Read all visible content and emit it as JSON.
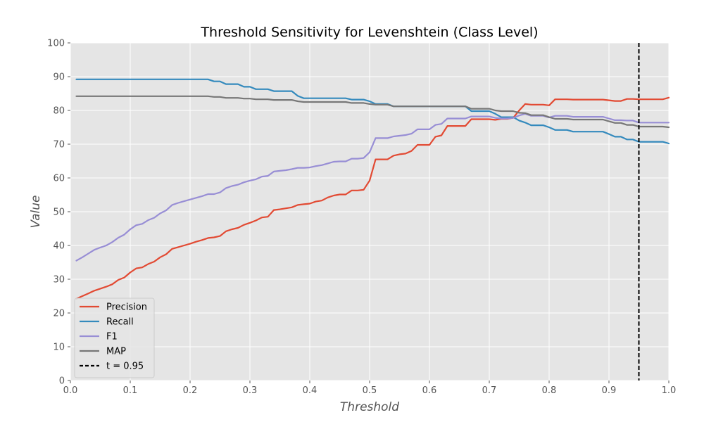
{
  "chart_data": {
    "type": "line",
    "title": "Threshold Sensitivity for Levenshtein (Class Level)",
    "xlabel": "Threshold",
    "ylabel": "Value",
    "xlim": [
      0,
      1
    ],
    "ylim": [
      0,
      100
    ],
    "xticks": [
      "0.0",
      "0.1",
      "0.2",
      "0.3",
      "0.4",
      "0.5",
      "0.6",
      "0.7",
      "0.8",
      "0.9",
      "1.0"
    ],
    "yticks": [
      "0",
      "10",
      "20",
      "30",
      "40",
      "50",
      "60",
      "70",
      "80",
      "90",
      "100"
    ],
    "grid": true,
    "legend_position": "lower-left",
    "series": [
      {
        "name": "Precision",
        "color": "#E24A33",
        "points": [
          [
            0.01,
            24.2
          ],
          [
            0.02,
            25.0
          ],
          [
            0.03,
            25.8
          ],
          [
            0.04,
            26.6
          ],
          [
            0.05,
            27.2
          ],
          [
            0.06,
            27.8
          ],
          [
            0.07,
            28.5
          ],
          [
            0.08,
            29.8
          ],
          [
            0.09,
            30.5
          ],
          [
            0.1,
            32.0
          ],
          [
            0.11,
            33.2
          ],
          [
            0.12,
            33.5
          ],
          [
            0.13,
            34.5
          ],
          [
            0.14,
            35.2
          ],
          [
            0.15,
            36.5
          ],
          [
            0.16,
            37.4
          ],
          [
            0.17,
            39.0
          ],
          [
            0.18,
            39.5
          ],
          [
            0.19,
            40.0
          ],
          [
            0.2,
            40.5
          ],
          [
            0.21,
            41.1
          ],
          [
            0.22,
            41.6
          ],
          [
            0.23,
            42.2
          ],
          [
            0.24,
            42.4
          ],
          [
            0.25,
            42.8
          ],
          [
            0.26,
            44.2
          ],
          [
            0.27,
            44.8
          ],
          [
            0.28,
            45.2
          ],
          [
            0.29,
            46.1
          ],
          [
            0.3,
            46.7
          ],
          [
            0.31,
            47.4
          ],
          [
            0.32,
            48.3
          ],
          [
            0.33,
            48.5
          ],
          [
            0.34,
            50.5
          ],
          [
            0.35,
            50.7
          ],
          [
            0.36,
            51.0
          ],
          [
            0.37,
            51.3
          ],
          [
            0.38,
            52.0
          ],
          [
            0.39,
            52.2
          ],
          [
            0.4,
            52.4
          ],
          [
            0.41,
            53.0
          ],
          [
            0.42,
            53.3
          ],
          [
            0.43,
            54.2
          ],
          [
            0.44,
            54.8
          ],
          [
            0.45,
            55.1
          ],
          [
            0.46,
            55.1
          ],
          [
            0.47,
            56.3
          ],
          [
            0.48,
            56.3
          ],
          [
            0.49,
            56.5
          ],
          [
            0.5,
            59.2
          ],
          [
            0.51,
            65.5
          ],
          [
            0.52,
            65.5
          ],
          [
            0.53,
            65.5
          ],
          [
            0.54,
            66.6
          ],
          [
            0.55,
            67.0
          ],
          [
            0.56,
            67.2
          ],
          [
            0.57,
            68.0
          ],
          [
            0.58,
            69.8
          ],
          [
            0.59,
            69.8
          ],
          [
            0.6,
            69.8
          ],
          [
            0.61,
            72.2
          ],
          [
            0.62,
            72.6
          ],
          [
            0.63,
            75.4
          ],
          [
            0.64,
            75.4
          ],
          [
            0.65,
            75.4
          ],
          [
            0.66,
            75.4
          ],
          [
            0.67,
            77.4
          ],
          [
            0.68,
            77.4
          ],
          [
            0.69,
            77.4
          ],
          [
            0.7,
            77.4
          ],
          [
            0.71,
            77.2
          ],
          [
            0.72,
            77.5
          ],
          [
            0.73,
            77.5
          ],
          [
            0.74,
            77.8
          ],
          [
            0.75,
            80.0
          ],
          [
            0.76,
            81.9
          ],
          [
            0.77,
            81.7
          ],
          [
            0.78,
            81.7
          ],
          [
            0.79,
            81.7
          ],
          [
            0.8,
            81.5
          ],
          [
            0.81,
            83.3
          ],
          [
            0.82,
            83.3
          ],
          [
            0.83,
            83.3
          ],
          [
            0.84,
            83.2
          ],
          [
            0.85,
            83.2
          ],
          [
            0.86,
            83.2
          ],
          [
            0.87,
            83.2
          ],
          [
            0.88,
            83.2
          ],
          [
            0.89,
            83.2
          ],
          [
            0.9,
            83.0
          ],
          [
            0.91,
            82.8
          ],
          [
            0.92,
            82.8
          ],
          [
            0.93,
            83.4
          ],
          [
            0.94,
            83.4
          ],
          [
            0.95,
            83.3
          ],
          [
            0.96,
            83.3
          ],
          [
            0.97,
            83.3
          ],
          [
            0.98,
            83.3
          ],
          [
            0.99,
            83.3
          ],
          [
            1.0,
            83.8
          ]
        ]
      },
      {
        "name": "Recall",
        "color": "#348ABD",
        "points": [
          [
            0.01,
            89.2
          ],
          [
            0.1,
            89.2
          ],
          [
            0.2,
            89.2
          ],
          [
            0.23,
            89.2
          ],
          [
            0.24,
            88.6
          ],
          [
            0.25,
            88.6
          ],
          [
            0.26,
            87.8
          ],
          [
            0.28,
            87.8
          ],
          [
            0.29,
            87.0
          ],
          [
            0.3,
            87.0
          ],
          [
            0.31,
            86.3
          ],
          [
            0.33,
            86.3
          ],
          [
            0.34,
            85.7
          ],
          [
            0.37,
            85.7
          ],
          [
            0.38,
            84.3
          ],
          [
            0.39,
            83.6
          ],
          [
            0.46,
            83.6
          ],
          [
            0.47,
            83.2
          ],
          [
            0.49,
            83.2
          ],
          [
            0.5,
            82.7
          ],
          [
            0.51,
            81.9
          ],
          [
            0.53,
            81.9
          ],
          [
            0.54,
            81.2
          ],
          [
            0.66,
            81.2
          ],
          [
            0.67,
            79.8
          ],
          [
            0.7,
            79.8
          ],
          [
            0.71,
            79.0
          ],
          [
            0.72,
            78.0
          ],
          [
            0.74,
            78.0
          ],
          [
            0.75,
            77.0
          ],
          [
            0.76,
            76.4
          ],
          [
            0.77,
            75.6
          ],
          [
            0.79,
            75.6
          ],
          [
            0.8,
            75.0
          ],
          [
            0.81,
            74.2
          ],
          [
            0.83,
            74.2
          ],
          [
            0.84,
            73.7
          ],
          [
            0.89,
            73.7
          ],
          [
            0.9,
            73.0
          ],
          [
            0.91,
            72.2
          ],
          [
            0.92,
            72.2
          ],
          [
            0.93,
            71.4
          ],
          [
            0.94,
            71.4
          ],
          [
            0.95,
            70.7
          ],
          [
            0.99,
            70.7
          ],
          [
            1.0,
            70.2
          ]
        ]
      },
      {
        "name": "F1",
        "color": "#988ED5",
        "points": [
          [
            0.01,
            35.5
          ],
          [
            0.02,
            36.5
          ],
          [
            0.03,
            37.6
          ],
          [
            0.04,
            38.7
          ],
          [
            0.05,
            39.4
          ],
          [
            0.06,
            40.0
          ],
          [
            0.07,
            41.0
          ],
          [
            0.08,
            42.3
          ],
          [
            0.09,
            43.2
          ],
          [
            0.1,
            44.8
          ],
          [
            0.11,
            46.0
          ],
          [
            0.12,
            46.4
          ],
          [
            0.13,
            47.5
          ],
          [
            0.14,
            48.2
          ],
          [
            0.15,
            49.5
          ],
          [
            0.16,
            50.4
          ],
          [
            0.17,
            52.0
          ],
          [
            0.18,
            52.6
          ],
          [
            0.19,
            53.1
          ],
          [
            0.2,
            53.6
          ],
          [
            0.21,
            54.1
          ],
          [
            0.22,
            54.6
          ],
          [
            0.23,
            55.2
          ],
          [
            0.24,
            55.2
          ],
          [
            0.25,
            55.7
          ],
          [
            0.26,
            57.0
          ],
          [
            0.27,
            57.6
          ],
          [
            0.28,
            58.0
          ],
          [
            0.29,
            58.7
          ],
          [
            0.3,
            59.2
          ],
          [
            0.31,
            59.6
          ],
          [
            0.32,
            60.4
          ],
          [
            0.33,
            60.6
          ],
          [
            0.34,
            61.9
          ],
          [
            0.35,
            62.1
          ],
          [
            0.36,
            62.3
          ],
          [
            0.37,
            62.6
          ],
          [
            0.38,
            63.0
          ],
          [
            0.39,
            63.0
          ],
          [
            0.4,
            63.1
          ],
          [
            0.41,
            63.5
          ],
          [
            0.42,
            63.8
          ],
          [
            0.43,
            64.3
          ],
          [
            0.44,
            64.8
          ],
          [
            0.45,
            64.9
          ],
          [
            0.46,
            64.9
          ],
          [
            0.47,
            65.7
          ],
          [
            0.48,
            65.7
          ],
          [
            0.49,
            65.9
          ],
          [
            0.5,
            67.6
          ],
          [
            0.51,
            71.8
          ],
          [
            0.52,
            71.8
          ],
          [
            0.53,
            71.8
          ],
          [
            0.54,
            72.3
          ],
          [
            0.55,
            72.5
          ],
          [
            0.56,
            72.7
          ],
          [
            0.57,
            73.1
          ],
          [
            0.58,
            74.4
          ],
          [
            0.59,
            74.4
          ],
          [
            0.6,
            74.4
          ],
          [
            0.61,
            75.7
          ],
          [
            0.62,
            76.0
          ],
          [
            0.63,
            77.6
          ],
          [
            0.64,
            77.6
          ],
          [
            0.65,
            77.6
          ],
          [
            0.66,
            77.6
          ],
          [
            0.67,
            78.2
          ],
          [
            0.68,
            78.2
          ],
          [
            0.69,
            78.2
          ],
          [
            0.7,
            78.2
          ],
          [
            0.71,
            77.8
          ],
          [
            0.72,
            77.6
          ],
          [
            0.73,
            77.6
          ],
          [
            0.74,
            77.8
          ],
          [
            0.75,
            78.5
          ],
          [
            0.76,
            79.0
          ],
          [
            0.77,
            78.4
          ],
          [
            0.78,
            78.4
          ],
          [
            0.79,
            78.4
          ],
          [
            0.8,
            77.9
          ],
          [
            0.81,
            78.4
          ],
          [
            0.82,
            78.4
          ],
          [
            0.83,
            78.4
          ],
          [
            0.84,
            78.1
          ],
          [
            0.85,
            78.1
          ],
          [
            0.86,
            78.1
          ],
          [
            0.87,
            78.1
          ],
          [
            0.88,
            78.1
          ],
          [
            0.89,
            78.1
          ],
          [
            0.9,
            77.6
          ],
          [
            0.91,
            77.1
          ],
          [
            0.92,
            77.1
          ],
          [
            0.93,
            77.0
          ],
          [
            0.94,
            77.0
          ],
          [
            0.95,
            76.4
          ],
          [
            0.96,
            76.4
          ],
          [
            0.97,
            76.4
          ],
          [
            0.98,
            76.4
          ],
          [
            0.99,
            76.4
          ],
          [
            1.0,
            76.4
          ]
        ]
      },
      {
        "name": "MAP",
        "color": "#777777",
        "points": [
          [
            0.01,
            84.2
          ],
          [
            0.1,
            84.2
          ],
          [
            0.2,
            84.2
          ],
          [
            0.23,
            84.2
          ],
          [
            0.24,
            84.0
          ],
          [
            0.25,
            84.0
          ],
          [
            0.26,
            83.7
          ],
          [
            0.28,
            83.7
          ],
          [
            0.29,
            83.5
          ],
          [
            0.3,
            83.5
          ],
          [
            0.31,
            83.3
          ],
          [
            0.33,
            83.3
          ],
          [
            0.34,
            83.1
          ],
          [
            0.37,
            83.1
          ],
          [
            0.38,
            82.7
          ],
          [
            0.39,
            82.5
          ],
          [
            0.46,
            82.5
          ],
          [
            0.47,
            82.2
          ],
          [
            0.49,
            82.2
          ],
          [
            0.5,
            81.9
          ],
          [
            0.51,
            81.7
          ],
          [
            0.53,
            81.7
          ],
          [
            0.54,
            81.2
          ],
          [
            0.66,
            81.2
          ],
          [
            0.67,
            80.5
          ],
          [
            0.7,
            80.5
          ],
          [
            0.71,
            80.0
          ],
          [
            0.72,
            79.8
          ],
          [
            0.74,
            79.8
          ],
          [
            0.75,
            79.3
          ],
          [
            0.76,
            79.2
          ],
          [
            0.77,
            78.6
          ],
          [
            0.79,
            78.6
          ],
          [
            0.8,
            78.0
          ],
          [
            0.81,
            77.5
          ],
          [
            0.83,
            77.5
          ],
          [
            0.84,
            77.3
          ],
          [
            0.89,
            77.3
          ],
          [
            0.9,
            76.8
          ],
          [
            0.91,
            76.3
          ],
          [
            0.92,
            76.3
          ],
          [
            0.93,
            75.7
          ],
          [
            0.94,
            75.7
          ],
          [
            0.95,
            75.2
          ],
          [
            0.99,
            75.2
          ],
          [
            1.0,
            75.0
          ]
        ]
      }
    ],
    "vline": {
      "x": 0.95,
      "label": "t = 0.95",
      "color": "#000000",
      "style": "dashed"
    }
  }
}
